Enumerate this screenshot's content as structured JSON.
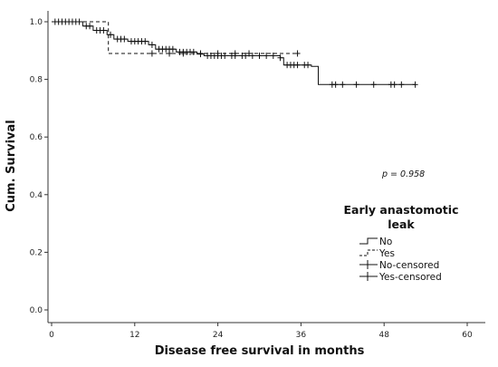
{
  "chart_data": {
    "type": "line",
    "subtype": "kaplan-meier",
    "title": "",
    "xlabel": "Disease free survival in months",
    "ylabel": "Cum. Survival",
    "xlim": [
      0,
      60
    ],
    "ylim": [
      0,
      1.0
    ],
    "x_ticks": [
      0,
      12,
      24,
      36,
      48,
      60
    ],
    "y_ticks": [
      0.0,
      0.2,
      0.4,
      0.6,
      0.8,
      1.0
    ],
    "y_tick_labels": [
      "0.0",
      "0.2",
      "0.4",
      "0.6",
      "0.8",
      "1.0"
    ],
    "grid": false,
    "annotation": "p = 0.958",
    "legend": {
      "title_line1": "Early anastomotic",
      "title_line2": "leak",
      "placement": "right",
      "entries": [
        "No",
        "Yes",
        "No-censored",
        "Yes-censored"
      ]
    },
    "series": [
      {
        "name": "No",
        "style": "solid",
        "steps": [
          [
            0,
            1.0
          ],
          [
            4.5,
            0.985
          ],
          [
            6,
            0.97
          ],
          [
            8,
            0.955
          ],
          [
            9,
            0.94
          ],
          [
            11,
            0.932
          ],
          [
            14,
            0.92
          ],
          [
            15,
            0.905
          ],
          [
            18,
            0.895
          ],
          [
            21,
            0.888
          ],
          [
            22,
            0.882
          ],
          [
            33,
            0.875
          ],
          [
            33.5,
            0.85
          ],
          [
            37.5,
            0.845
          ],
          [
            38.5,
            0.782
          ],
          [
            52.5,
            0.782
          ]
        ],
        "censored": [
          0.5,
          1,
          1.5,
          2,
          2.5,
          3,
          3.5,
          4,
          5,
          5.5,
          6.5,
          7,
          7.5,
          8.5,
          9.5,
          10,
          10.5,
          11.5,
          12,
          12.5,
          13,
          13.5,
          14.5,
          15.5,
          16,
          16.5,
          17,
          17.5,
          18.5,
          19,
          19.5,
          20,
          20.5,
          21.5,
          22.5,
          23,
          23.5,
          24,
          24.5,
          25,
          26,
          26.5,
          27.5,
          28,
          29,
          30,
          31,
          32,
          33,
          34,
          34.5,
          35,
          35.5,
          36.5,
          37,
          40.5,
          41,
          42,
          44,
          46.5,
          49,
          49.5,
          50.5,
          52.5
        ]
      },
      {
        "name": "Yes",
        "style": "dashed",
        "steps": [
          [
            0,
            1.0
          ],
          [
            8.2,
            0.89
          ],
          [
            35.5,
            0.89
          ]
        ],
        "censored": [
          14.5,
          17,
          19,
          21.5,
          24,
          26.5,
          28.5,
          35.5
        ]
      }
    ]
  }
}
